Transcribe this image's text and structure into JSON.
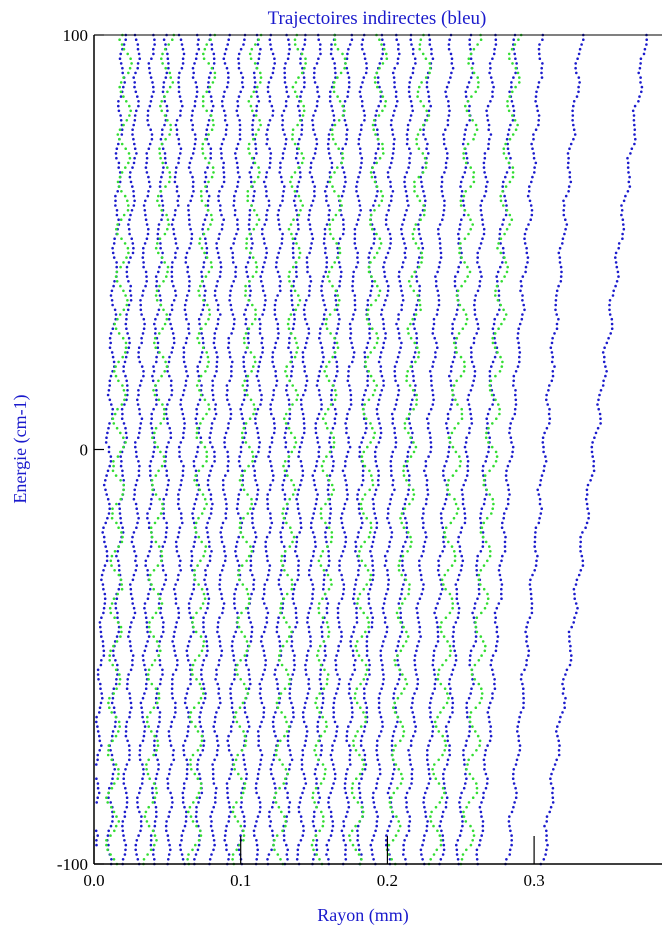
{
  "chart_data": {
    "type": "scatter",
    "title": "Trajectoires indirectes (bleu)",
    "xlabel": "Rayon (mm)",
    "ylabel": "Energie (cm-1)",
    "xlim": [
      0.0,
      0.38
    ],
    "ylim": [
      -100,
      100
    ],
    "x_ticks": [
      {
        "value": 0.0,
        "label": "0.0"
      },
      {
        "value": 0.1,
        "label": "0.1"
      },
      {
        "value": 0.2,
        "label": "0.2"
      },
      {
        "value": 0.3,
        "label": "0.3"
      }
    ],
    "y_ticks": [
      {
        "value": 100,
        "label": "100"
      },
      {
        "value": 0,
        "label": "0"
      },
      {
        "value": -100,
        "label": "-100"
      }
    ],
    "grid": false,
    "series": [
      {
        "color": "#1a1acc",
        "rays": [
          {
            "x0": 0.0,
            "dx": 0.02
          },
          {
            "x0": 0.01,
            "dx": 0.02
          },
          {
            "x0": 0.02,
            "dx": 0.02
          },
          {
            "x0": 0.03,
            "dx": 0.02
          },
          {
            "x0": 0.04,
            "dx": 0.02
          },
          {
            "x0": 0.05,
            "dx": 0.02
          },
          {
            "x0": 0.06,
            "dx": 0.021
          },
          {
            "x0": 0.07,
            "dx": 0.021
          },
          {
            "x0": 0.08,
            "dx": 0.021
          },
          {
            "x0": 0.09,
            "dx": 0.022
          },
          {
            "x0": 0.1,
            "dx": 0.022
          },
          {
            "x0": 0.11,
            "dx": 0.022
          },
          {
            "x0": 0.12,
            "dx": 0.023
          },
          {
            "x0": 0.13,
            "dx": 0.023
          },
          {
            "x0": 0.14,
            "dx": 0.024
          },
          {
            "x0": 0.15,
            "dx": 0.024
          },
          {
            "x0": 0.16,
            "dx": 0.025
          },
          {
            "x0": 0.17,
            "dx": 0.026
          },
          {
            "x0": 0.18,
            "dx": 0.027
          },
          {
            "x0": 0.19,
            "dx": 0.028
          },
          {
            "x0": 0.2,
            "dx": 0.03
          },
          {
            "x0": 0.212,
            "dx": 0.032
          },
          {
            "x0": 0.224,
            "dx": 0.034
          },
          {
            "x0": 0.236,
            "dx": 0.037
          },
          {
            "x0": 0.248,
            "dx": 0.04
          },
          {
            "x0": 0.262,
            "dx": 0.044
          },
          {
            "x0": 0.282,
            "dx": 0.05
          },
          {
            "x0": 0.306,
            "dx": 0.07
          }
        ]
      },
      {
        "color": "#33dd33",
        "rays": [
          {
            "x0": 0.012,
            "dx": 0.01
          },
          {
            "x0": 0.038,
            "dx": 0.012
          },
          {
            "x0": 0.068,
            "dx": 0.011
          },
          {
            "x0": 0.098,
            "dx": 0.013
          },
          {
            "x0": 0.126,
            "dx": 0.015
          },
          {
            "x0": 0.152,
            "dx": 0.016
          },
          {
            "x0": 0.178,
            "dx": 0.018
          },
          {
            "x0": 0.204,
            "dx": 0.022
          },
          {
            "x0": 0.232,
            "dx": 0.028
          },
          {
            "x0": 0.254,
            "dx": 0.034
          }
        ]
      }
    ]
  }
}
